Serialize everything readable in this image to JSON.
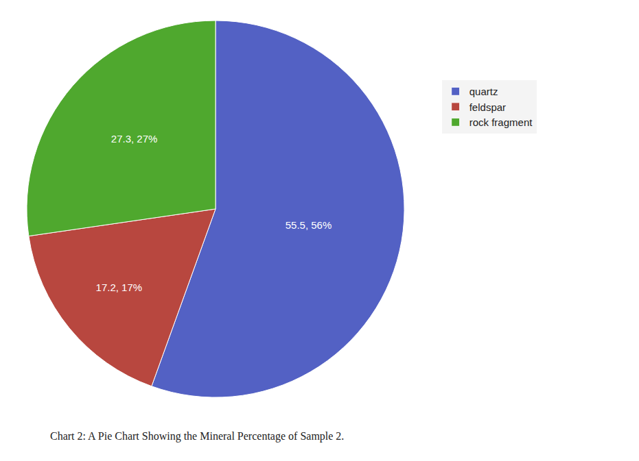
{
  "chart_data": {
    "type": "pie",
    "caption": "Chart 2: A Pie Chart Showing the Mineral Percentage of Sample 2.",
    "categories": [
      "quartz",
      "feldspar",
      "rock fragment"
    ],
    "values": [
      55.5,
      17.2,
      27.3
    ],
    "value_labels": [
      "55.5, 56%",
      "17.2, 17%",
      "27.3, 27%"
    ],
    "colors": [
      "#5361c4",
      "#b8473f",
      "#4fa82e"
    ],
    "legend": "right",
    "data_labels": true
  }
}
